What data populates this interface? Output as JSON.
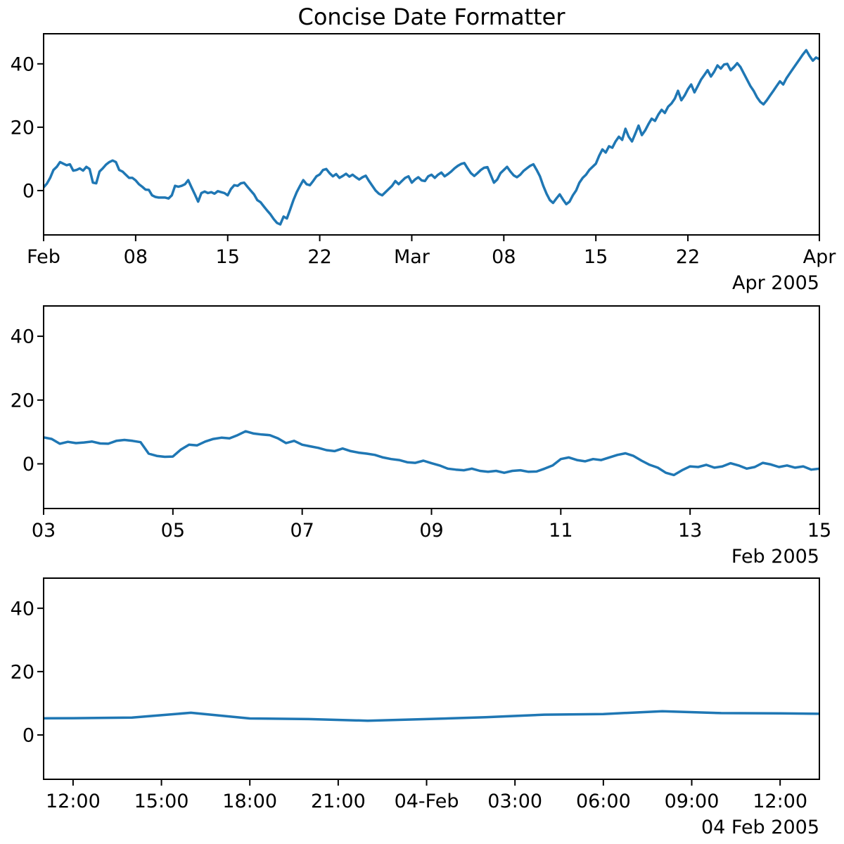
{
  "figure": {
    "title": "Concise Date Formatter",
    "background": "#ffffff",
    "text_color": "#000000",
    "spine_color": "#000000"
  },
  "chart_data": [
    {
      "type": "line",
      "name": "top-subplot",
      "line_color": "#1f77b4",
      "ylim": [
        -14,
        49.5
      ],
      "y_ticks": [
        0,
        20,
        40
      ],
      "xlim": [
        0,
        59
      ],
      "x_ticks": [
        {
          "pos": 0,
          "label": "Feb"
        },
        {
          "pos": 7,
          "label": "08"
        },
        {
          "pos": 14,
          "label": "15"
        },
        {
          "pos": 21,
          "label": "22"
        },
        {
          "pos": 28,
          "label": "Mar"
        },
        {
          "pos": 35,
          "label": "08"
        },
        {
          "pos": 42,
          "label": "15"
        },
        {
          "pos": 49,
          "label": "22"
        },
        {
          "pos": 59,
          "label": "Apr"
        }
      ],
      "offset_label": "Apr 2005",
      "series": {
        "x0": 0,
        "x_step": 0.25,
        "values": [
          1.0,
          2.2,
          4.0,
          6.5,
          7.5,
          9.0,
          8.5,
          8.0,
          8.3,
          6.3,
          6.5,
          7.0,
          6.3,
          7.5,
          6.8,
          2.5,
          2.3,
          6.0,
          7.0,
          8.2,
          9.0,
          9.5,
          9.0,
          6.5,
          6.0,
          5.0,
          4.0,
          4.0,
          3.2,
          2.0,
          1.2,
          0.3,
          0.2,
          -1.5,
          -2.0,
          -2.2,
          -2.2,
          -2.2,
          -2.5,
          -1.5,
          1.5,
          1.2,
          1.5,
          2.0,
          3.3,
          1.0,
          -1.2,
          -3.5,
          -0.8,
          -0.3,
          -0.8,
          -0.5,
          -1.0,
          -0.2,
          -0.5,
          -0.8,
          -1.5,
          0.5,
          1.7,
          1.5,
          2.3,
          2.5,
          1.2,
          0.0,
          -1.2,
          -3.0,
          -3.7,
          -5.0,
          -6.3,
          -7.5,
          -9.0,
          -10.2,
          -10.7,
          -8.2,
          -8.8,
          -6.0,
          -3.0,
          -0.5,
          1.5,
          3.3,
          2.0,
          1.7,
          3.0,
          4.5,
          5.1,
          6.5,
          6.8,
          5.5,
          4.5,
          5.2,
          4.0,
          4.6,
          5.3,
          4.4,
          5.0,
          4.2,
          3.5,
          4.2,
          4.7,
          3.0,
          1.5,
          0.0,
          -1.0,
          -1.5,
          -0.5,
          0.5,
          1.5,
          3.0,
          2.0,
          3.0,
          4.0,
          4.5,
          2.5,
          3.5,
          4.2,
          3.2,
          3.0,
          4.5,
          5.0,
          4.0,
          5.0,
          5.7,
          4.5,
          5.2,
          6.0,
          7.0,
          7.8,
          8.4,
          8.7,
          7.0,
          5.5,
          4.6,
          5.5,
          6.5,
          7.2,
          7.4,
          5.0,
          2.5,
          3.5,
          5.5,
          6.5,
          7.5,
          6.0,
          4.8,
          4.2,
          5.0,
          6.2,
          7.0,
          7.8,
          8.3,
          6.5,
          4.5,
          1.5,
          -1.0,
          -3.0,
          -3.9,
          -2.5,
          -1.2,
          -2.8,
          -4.3,
          -3.5,
          -1.5,
          0.0,
          2.5,
          4.0,
          5.0,
          6.5,
          7.5,
          8.5,
          11.0,
          13.0,
          12.0,
          14.0,
          13.5,
          15.5,
          17.0,
          16.0,
          19.5,
          17.0,
          15.5,
          18.0,
          20.5,
          17.5,
          19.0,
          21.0,
          22.7,
          22.0,
          24.0,
          25.5,
          24.5,
          26.5,
          27.5,
          29.0,
          31.5,
          28.5,
          30.0,
          32.0,
          33.5,
          31.0,
          33.0,
          35.0,
          36.5,
          38.0,
          36.0,
          37.5,
          39.5,
          38.5,
          39.8,
          40.0,
          38.0,
          39.0,
          40.2,
          39.0,
          37.0,
          35.0,
          33.0,
          31.5,
          29.5,
          28.0,
          27.2,
          28.5,
          30.0,
          31.5,
          33.0,
          34.5,
          33.5,
          35.5,
          37.0,
          38.5,
          40.0,
          41.5,
          43.0,
          44.3,
          42.5,
          41.0,
          42.0,
          41.5
        ]
      }
    },
    {
      "type": "line",
      "name": "middle-subplot",
      "line_color": "#1f77b4",
      "ylim": [
        -14,
        49.5
      ],
      "y_ticks": [
        0,
        20,
        40
      ],
      "xlim": [
        0,
        12
      ],
      "x_ticks": [
        {
          "pos": 0,
          "label": "03"
        },
        {
          "pos": 2,
          "label": "05"
        },
        {
          "pos": 4,
          "label": "07"
        },
        {
          "pos": 6,
          "label": "09"
        },
        {
          "pos": 8,
          "label": "11"
        },
        {
          "pos": 10,
          "label": "13"
        },
        {
          "pos": 12,
          "label": "15"
        }
      ],
      "offset_label": "Feb 2005",
      "series": {
        "x0": 0,
        "x_step": 0.125,
        "values": [
          8.3,
          7.8,
          6.3,
          6.9,
          6.5,
          6.7,
          7.0,
          6.4,
          6.3,
          7.2,
          7.5,
          7.2,
          6.8,
          3.2,
          2.5,
          2.2,
          2.3,
          4.5,
          6.0,
          5.8,
          7.0,
          7.8,
          8.2,
          8.0,
          9.0,
          10.2,
          9.5,
          9.2,
          9.0,
          8.0,
          6.5,
          7.2,
          6.0,
          5.5,
          5.0,
          4.3,
          4.0,
          4.8,
          4.0,
          3.5,
          3.2,
          2.8,
          2.0,
          1.5,
          1.2,
          0.5,
          0.3,
          1.0,
          0.2,
          -0.5,
          -1.5,
          -1.8,
          -2.0,
          -1.5,
          -2.2,
          -2.5,
          -2.2,
          -2.8,
          -2.2,
          -2.0,
          -2.5,
          -2.4,
          -1.5,
          -0.5,
          1.5,
          2.0,
          1.2,
          0.8,
          1.5,
          1.2,
          2.0,
          2.8,
          3.3,
          2.5,
          1.0,
          -0.3,
          -1.2,
          -2.8,
          -3.5,
          -2.0,
          -0.8,
          -1.0,
          -0.3,
          -1.2,
          -0.8,
          0.2,
          -0.5,
          -1.5,
          -1.0,
          0.3,
          -0.2,
          -1.0,
          -0.5,
          -1.2,
          -0.8,
          -1.8,
          -1.5
        ]
      }
    },
    {
      "type": "line",
      "name": "bottom-subplot",
      "line_color": "#1f77b4",
      "ylim": [
        -14,
        49.5
      ],
      "y_ticks": [
        0,
        20,
        40
      ],
      "xlim": [
        0,
        26.333
      ],
      "x_ticks": [
        {
          "pos": 1,
          "label": "12:00"
        },
        {
          "pos": 4,
          "label": "15:00"
        },
        {
          "pos": 7,
          "label": "18:00"
        },
        {
          "pos": 10,
          "label": "21:00"
        },
        {
          "pos": 13,
          "label": "04-Feb"
        },
        {
          "pos": 16,
          "label": "03:00"
        },
        {
          "pos": 19,
          "label": "06:00"
        },
        {
          "pos": 22,
          "label": "09:00"
        },
        {
          "pos": 25,
          "label": "12:00"
        }
      ],
      "offset_label": "04 Feb 2005",
      "series": {
        "x0": -1,
        "x_step": 2,
        "values": [
          5.2,
          5.3,
          5.5,
          7.0,
          5.2,
          5.0,
          4.5,
          5.0,
          5.6,
          6.4,
          6.6,
          7.5,
          6.9,
          6.8,
          6.6
        ]
      }
    }
  ]
}
